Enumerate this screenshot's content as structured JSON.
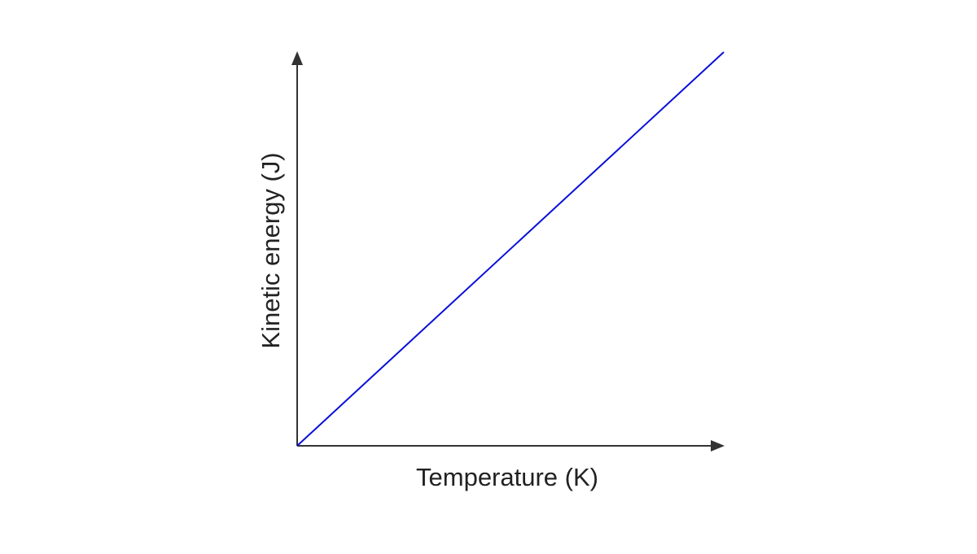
{
  "chart_data": {
    "type": "line",
    "title": "",
    "xlabel": "Temperature (K)",
    "ylabel": "Kinetic energy (J)",
    "xlim": [
      0,
      1
    ],
    "ylim": [
      0,
      1
    ],
    "grid": false,
    "legend": "none",
    "axis_ticks": "none",
    "series": [
      {
        "color": "#0a10d8",
        "x": [
          0,
          1
        ],
        "y": [
          0,
          1
        ]
      }
    ]
  },
  "colors": {
    "axis": "#333333",
    "text": "#222222",
    "background": "#ffffff"
  }
}
